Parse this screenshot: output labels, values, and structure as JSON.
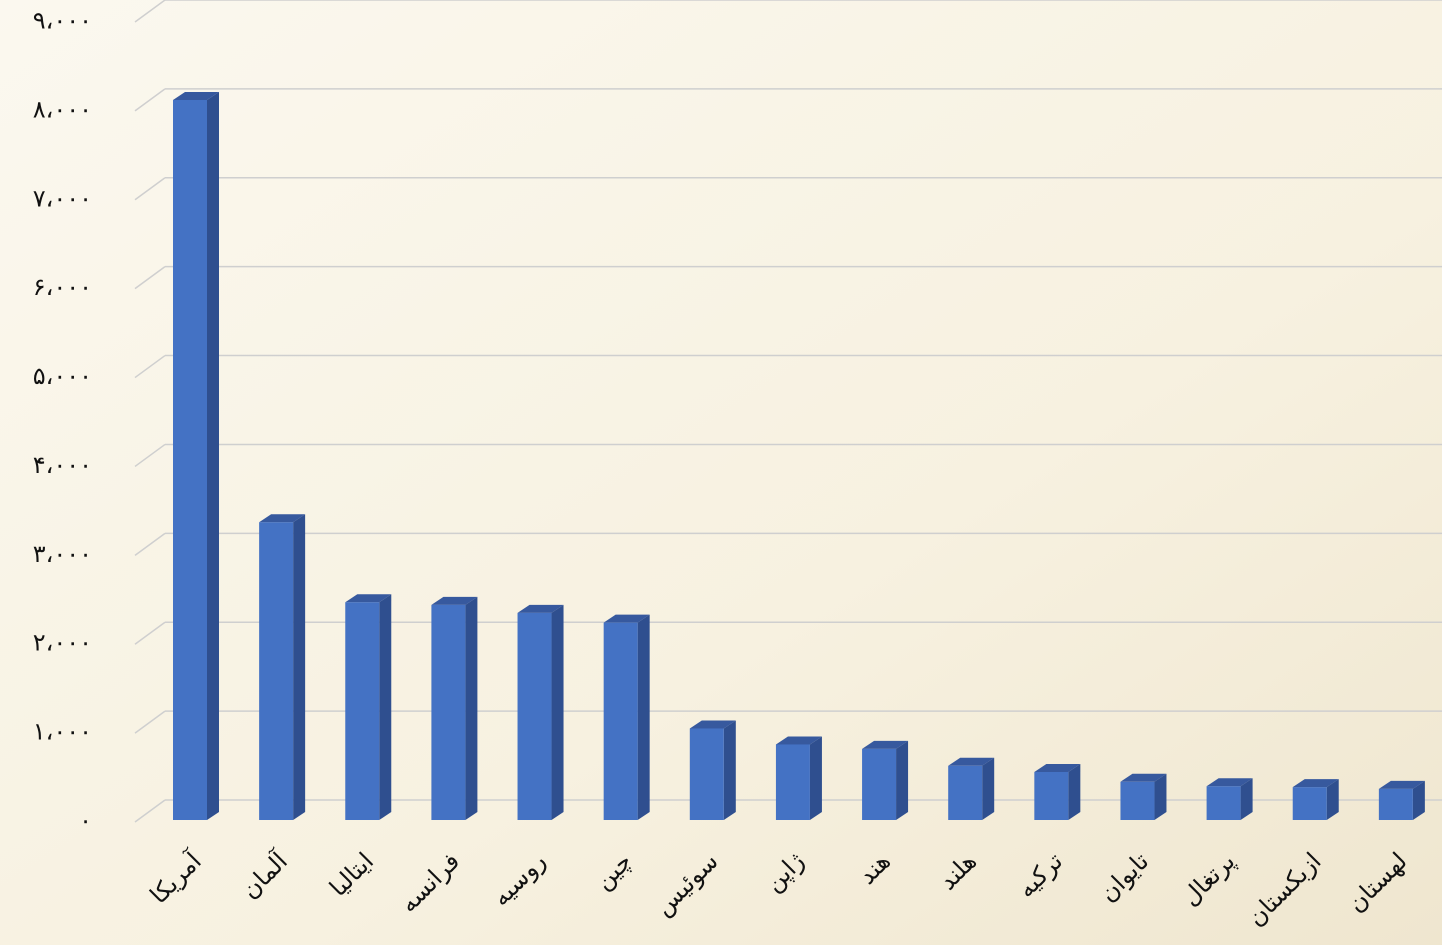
{
  "chart_data": {
    "type": "bar3d",
    "categories": [
      "آمریکا",
      "آلمان",
      "ایتالیا",
      "فرانسه",
      "روسیه",
      "چین",
      "سوئیس",
      "ژاپن",
      "هند",
      "هلند",
      "ترکیه",
      "تایوان",
      "پرتغال",
      "ازبکستان",
      "لهستان"
    ],
    "values": [
      8100,
      3350,
      2450,
      2420,
      2330,
      2220,
      1030,
      850,
      800,
      610,
      540,
      430,
      380,
      370,
      350
    ],
    "color": "#4472c4",
    "ylim": [
      0,
      9000
    ],
    "yticks": [
      {
        "value": 0,
        "label": "۰"
      },
      {
        "value": 1000,
        "label": "۱،۰۰۰"
      },
      {
        "value": 2000,
        "label": "۲،۰۰۰"
      },
      {
        "value": 3000,
        "label": "۳،۰۰۰"
      },
      {
        "value": 4000,
        "label": "۴،۰۰۰"
      },
      {
        "value": 5000,
        "label": "۵،۰۰۰"
      },
      {
        "value": 6000,
        "label": "۶،۰۰۰"
      },
      {
        "value": 7000,
        "label": "۷،۰۰۰"
      },
      {
        "value": 8000,
        "label": "۸،۰۰۰"
      },
      {
        "value": 9000,
        "label": "۹،۰۰۰"
      }
    ],
    "grid": true
  }
}
